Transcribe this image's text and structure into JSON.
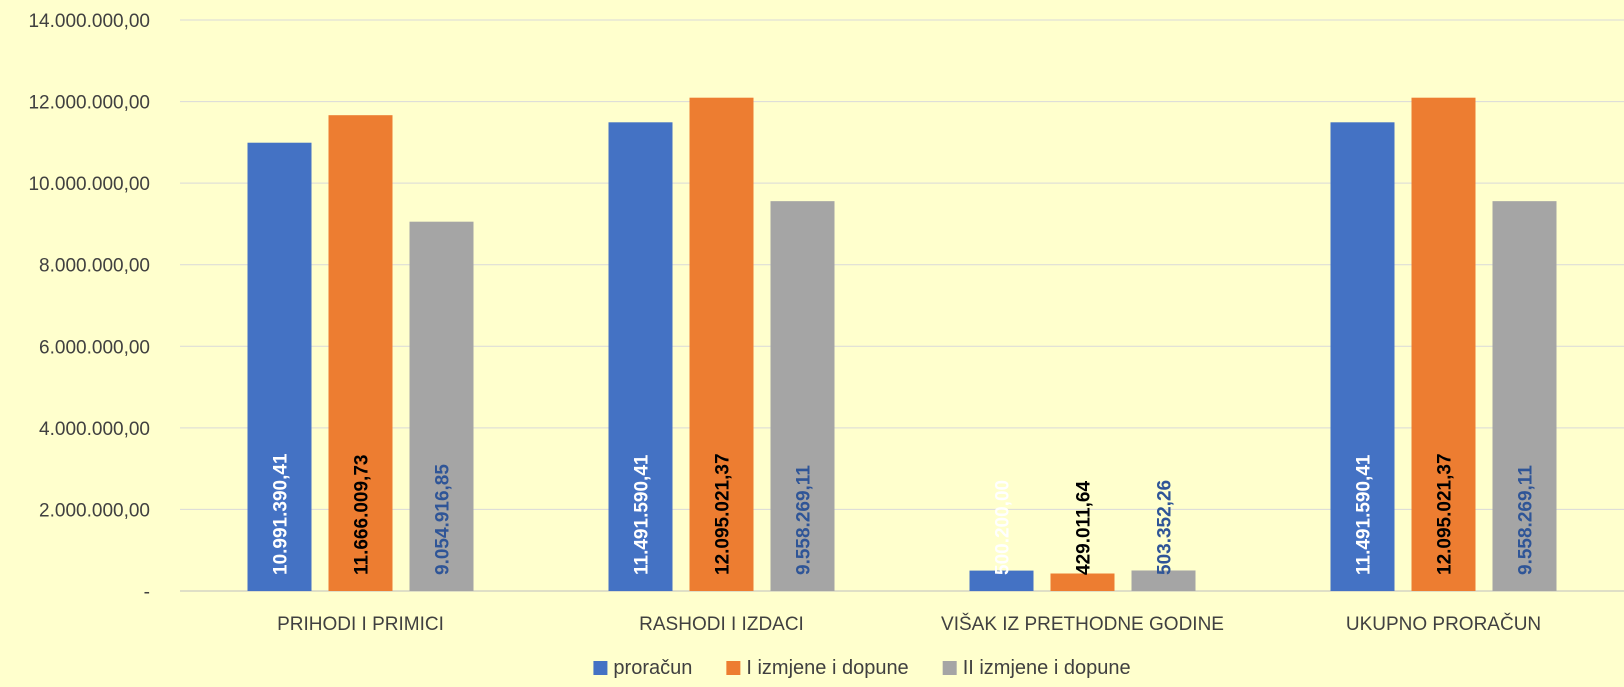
{
  "chart_data": {
    "type": "bar",
    "title": "",
    "xlabel": "",
    "ylabel": "",
    "ylim": [
      0,
      14000000
    ],
    "y_ticks": [
      "-",
      "2.000.000,00",
      "4.000.000,00",
      "6.000.000,00",
      "8.000.000,00",
      "10.000.000,00",
      "12.000.000,00",
      "14.000.000,00"
    ],
    "categories": [
      "PRIHODI I PRIMICI",
      "RASHODI I IZDACI",
      "VIŠAK IZ PRETHODNE GODINE",
      "UKUPNO PRORAČUN"
    ],
    "grid": true,
    "legend_position": "bottom",
    "series": [
      {
        "name": "proračun",
        "color": "#4472c4",
        "label_color": "#ffffff",
        "values": [
          10991390.41,
          11491590.41,
          500200.0,
          11491590.41
        ],
        "labels": [
          "10.991.390,41",
          "11.491.590,41",
          "500.200,00",
          "11.491.590,41"
        ]
      },
      {
        "name": "I izmjene i dopune",
        "color": "#ed7d31",
        "label_color": "#000000",
        "values": [
          11666009.73,
          12095021.37,
          429011.64,
          12095021.37
        ],
        "labels": [
          "11.666.009,73",
          "12.095.021,37",
          "429.011,64",
          "12.095.021,37"
        ]
      },
      {
        "name": "II izmjene i dopune",
        "color": "#a5a5a5",
        "label_color": "#2f5597",
        "values": [
          9054916.85,
          9558269.11,
          503352.26,
          9558269.11
        ],
        "labels": [
          "9.054.916,85",
          "9.558.269,11",
          "503.352,26",
          "9.558.269,11"
        ]
      }
    ]
  }
}
